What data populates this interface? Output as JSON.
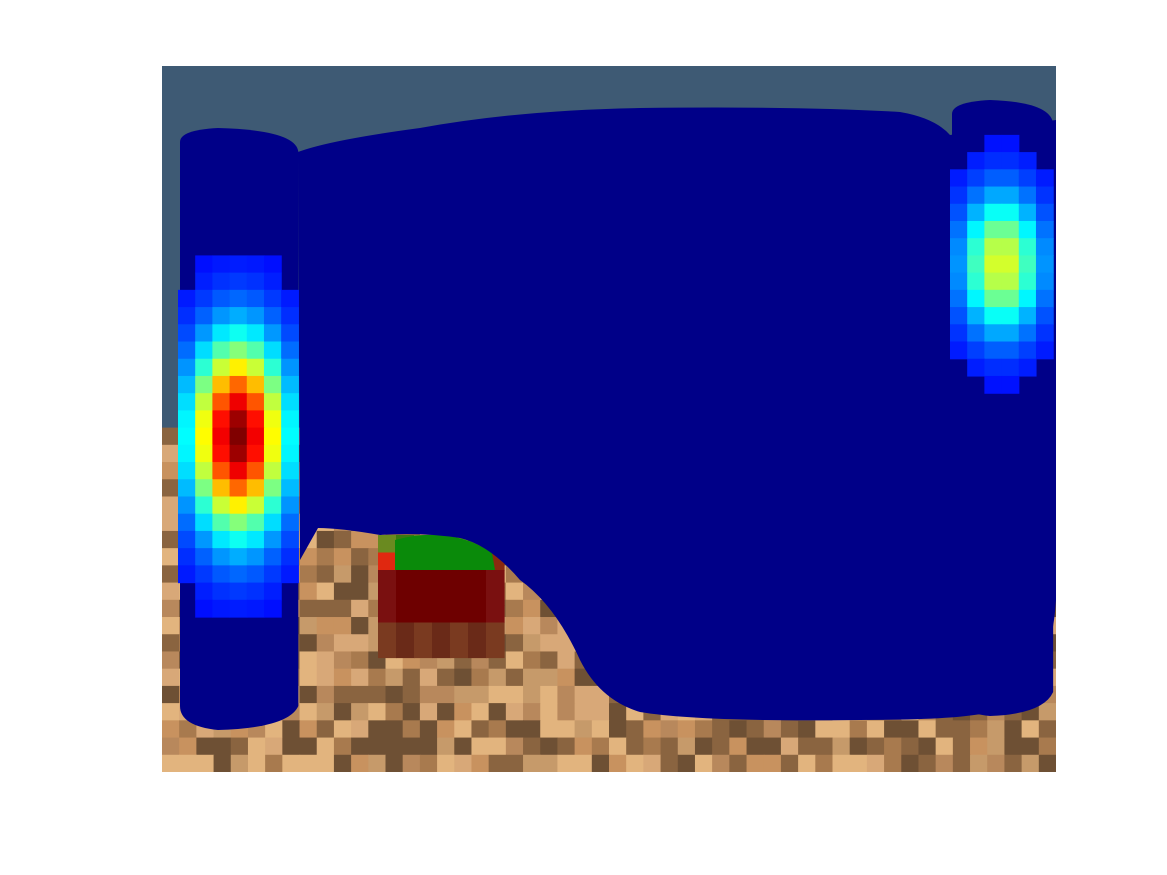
{
  "chart_data": {
    "type": "heatmap",
    "title": "",
    "xlabel": "",
    "ylabel": "",
    "axes_visible": false,
    "grid": false,
    "legend": "none",
    "colormap": "jet",
    "colormap_stops": [
      "#00007f",
      "#0000ff",
      "#007fff",
      "#00ffff",
      "#7fff7f",
      "#ffff00",
      "#ff7f00",
      "#ff0000",
      "#7f0000"
    ],
    "grid_size": {
      "cols": 52,
      "rows": 41
    },
    "background": {
      "sky_color": "#3e5a74",
      "sand_colors": [
        "#c8925f",
        "#d8a878",
        "#a87a4e",
        "#8a6440",
        "#e2b47e",
        "#6e5034",
        "#b8885c",
        "#c69a6a"
      ],
      "sand_top_row": 21
    },
    "overlay": {
      "base_color": "#000088",
      "left_column_peak": {
        "col": 4,
        "row": 21,
        "rows_span": 11,
        "value": 1.0
      },
      "right_column_peak": {
        "col": 49,
        "row": 11,
        "rows_span": 8,
        "value": 0.55
      }
    },
    "block": {
      "top_color": "#0a8a0a",
      "body_color": "#6e0000",
      "edge_colors": [
        "#e02810",
        "#a00000",
        "#8a2a10",
        "#5a3a10"
      ]
    }
  }
}
